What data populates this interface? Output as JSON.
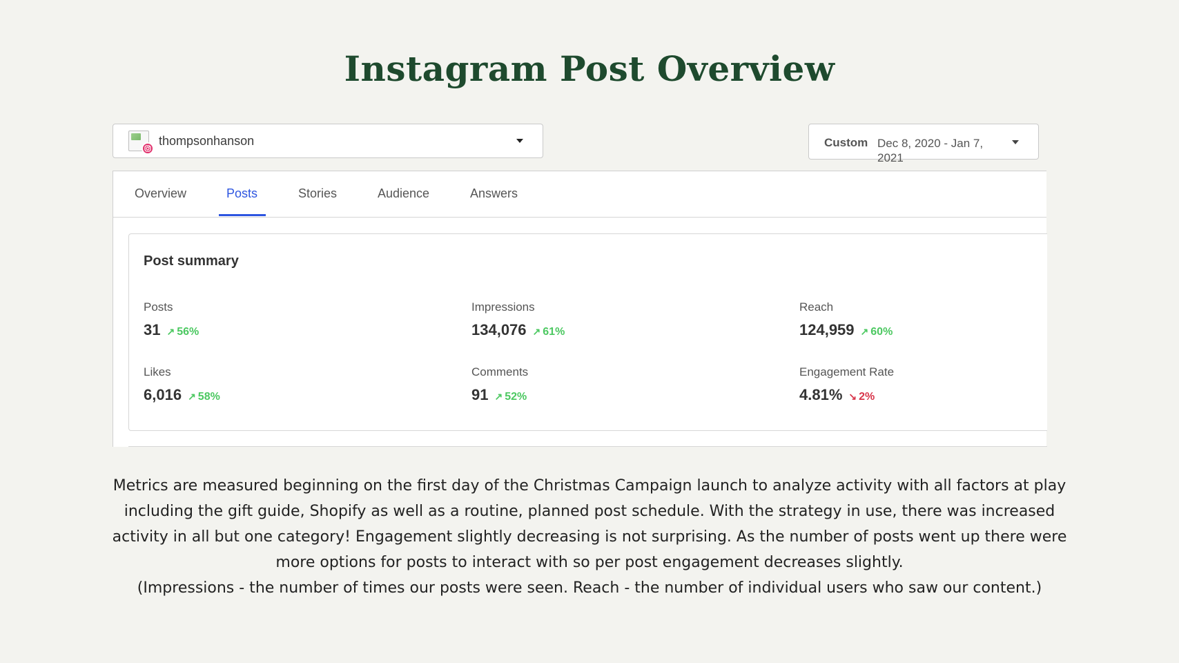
{
  "title": "Instagram Post Overview",
  "account": {
    "name": "thompsonhanson"
  },
  "date_filter": {
    "type": "Custom",
    "range": "Dec 8, 2020 - Jan 7, 2021"
  },
  "tabs": [
    {
      "label": "Overview",
      "active": false
    },
    {
      "label": "Posts",
      "active": true
    },
    {
      "label": "Stories",
      "active": false
    },
    {
      "label": "Audience",
      "active": false
    },
    {
      "label": "Answers",
      "active": false
    }
  ],
  "summary": {
    "title": "Post summary",
    "metrics": [
      {
        "label": "Posts",
        "value": "31",
        "change": "56%",
        "trend": "up"
      },
      {
        "label": "Impressions",
        "value": "134,076",
        "change": "61%",
        "trend": "up"
      },
      {
        "label": "Reach",
        "value": "124,959",
        "change": "60%",
        "trend": "up"
      },
      {
        "label": "Likes",
        "value": "6,016",
        "change": "58%",
        "trend": "up"
      },
      {
        "label": "Comments",
        "value": "91",
        "change": "52%",
        "trend": "up"
      },
      {
        "label": "Engagement Rate",
        "value": "4.81%",
        "change": "2%",
        "trend": "down"
      }
    ]
  },
  "caption": {
    "paragraph": "Metrics are measured beginning on the first day of the Christmas Campaign launch to analyze activity with all factors at play including the gift guide, Shopify as well as a routine, planned post schedule. With the strategy in use, there was increased activity in all but one category! Engagement slightly decreasing is not surprising. As the number of posts went up there were more options for posts to interact with so per post engagement decreases slightly.",
    "note": "(Impressions - the number of times our posts were seen. Reach - the number of individual users who saw our content.)"
  },
  "colors": {
    "title": "#1e4a2e",
    "accent": "#2d55e0",
    "up": "#4cc861",
    "down": "#d8354a",
    "instagram": "#e1306c"
  },
  "icons": {
    "account_avatar": "broken-image-icon",
    "badge": "instagram-icon",
    "trend_up": "arrow-up-right-icon",
    "trend_down": "arrow-down-right-icon",
    "dropdown": "caret-down-icon"
  }
}
